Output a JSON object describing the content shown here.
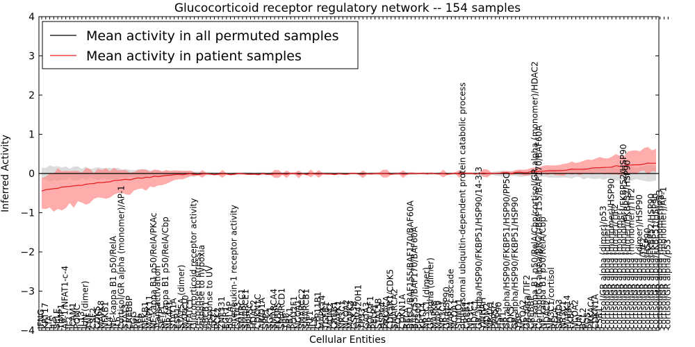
{
  "chart_data": {
    "type": "line",
    "title": "Glucocorticoid receptor regulatory network -- 154 samples",
    "xlabel": "Cellular Entities",
    "ylabel": "Inferred Activity",
    "ylim": [
      -4,
      4
    ],
    "yticks": [
      "4",
      "3",
      "2",
      "1",
      "0",
      "−1",
      "−2",
      "−3",
      "−4"
    ],
    "grid": false,
    "legend_position": "top-left",
    "n_points": 154,
    "colors": {
      "permuted": "#000000",
      "patient": "#e31a1c",
      "permuted_band": "#c0c0c0",
      "patient_band": "#ff8080"
    },
    "categories": [
      "IFNG",
      "KRT17",
      "LTA",
      "IL5",
      "SELE",
      "TIMP1",
      "AP-1/NFAT1-c-4",
      "IL2",
      "ICAM1",
      "POMC",
      "IL13",
      "JUN (dimer)",
      "TNF",
      "CSF2",
      "CDK5",
      "MAPK8",
      "NFKB1",
      "IL4",
      "NF-kappa B1 p50/RelA",
      "IL6",
      "Cortisol/GR alpha (monomer)/AP-1",
      "STAT3",
      "CREBBP",
      "FGG",
      "PRL",
      "AFP",
      "NFKB1",
      "MAPK11",
      "NF-kappa B1 p50/RelA/PKAc",
      "Transactivation",
      "SFTPC",
      "NF-kappa B1 p50/RelA/Cbp",
      "NR4A1",
      "STAT1A",
      "ESR1",
      "STAT5A (dimer)",
      "MAPK10",
      "NFATC1",
      "Glucocorticoid receptor activity",
      "response to stress",
      "response to hypoxia",
      "ABCB1",
      "response to UV",
      "AKT1",
      "PCK2",
      "ZNF331",
      "EGR1",
      "BGLAP",
      "Interleukin-1 receptor activity",
      "GATA3",
      "SMARCC1",
      "SMARCE1",
      "PPP5C",
      "HDAC2",
      "CDKN1C",
      "ARID1A",
      "SPP1",
      "SGK1",
      "SMARCA4",
      "FKBP5",
      "SMARCD1",
      "TBP",
      "PBX1",
      "POU2F1",
      "NCOA1",
      "SMARCC2",
      "SMARCB1",
      "IRF1",
      "IL8",
      "CYP11B1",
      "MAPK14",
      "TGFB1",
      "MDM2",
      "CREB1",
      "MAPK1",
      "NR3C1",
      "NCOA2",
      "MAPK3",
      "GSK3B",
      "SUV420H1",
      "TP53",
      "GATA3",
      "POU2F1",
      "PELP1",
      "STAT5B",
      "HSPA4",
      "PRKACA",
      "CDK5R1/CDK5",
      "SMARCA2",
      "FOS",
      "CDKN1A",
      "RELA",
      "BRG1/BAF155/BAF170/BAF60A",
      "BAF155/BAF170/BAF60A",
      "EP300",
      "KRT14",
      "NR3C1 (dimer)",
      "GR alpha (dimer)",
      "MAPK8",
      "MAPK9",
      "NR3C1",
      "GR/HSP90",
      "MAPK cascade",
      "NCOA1",
      "SUMO1",
      "proteasomal ubiquitin-dependent protein catabolic process",
      "CREB1",
      "NR3C1",
      "HDAC1",
      "GR alpha/HSP90/FKBP51/HSP90/14-3-3",
      "YWHAH",
      "MDM2",
      "NR4A1",
      "PPP5C",
      "HSP90",
      "GR1",
      "GR alpha/HSP90/FKBP51/HSP90/PP5C",
      "CDK5",
      "GR alpha/HSP90/FKBP51/HSP90",
      "TBP",
      "NCOA2",
      "GR beta/TIF2",
      "CREBBP",
      "NF-kappa B1 p50/RelA/Cbp/cortisol/GR alpha (monomer)/HDAC2",
      "Cortisol/GR alpha/BRG1/BAF155/BAF170/BAF60A",
      "NF-kappa B1 p50/RelA/Cbp",
      "HDAC2",
      "NR3C1/cortisol",
      "RELA",
      "SMAD3",
      "NR3C1",
      "MAPK14",
      "FKBP5",
      "NCOA2",
      "JUN",
      "BCL2",
      "FOS",
      "PRKACA",
      "CDKN1A",
      "ESR1",
      "cortisol/GR alpha (dimer)/p53",
      "cortisol/GR alpha (dimer)",
      "cortisol/GR alpha (monomer)/HSP90",
      "cortisol/GR alpha (dimer)/TIF2",
      "cortisol/GR alpha (monomer)",
      "cortisol/GR alpha (monomer)/FKBP52/HSP90",
      "cortisol/GR alpha (dimer)/FKBP52/HSP90",
      "cortisol/GR alpha (monomer)/TIF2",
      "cortisol/GR alpha",
      "cortisol/GR alpha (dimer)/HSP90",
      "cortisol/GR alpha/TIF2",
      "cortisol/GR alpha/HSP90",
      "cortisol/GR alpha/FKBP52/HSP90",
      "cortisol/GR alpha/FKBP51/HSP90",
      "cortisol/GR alpha (monomer)/p53",
      "cortisol/GR alpha (monomer)/AP-1",
      "cortisol/GR alpha/p53"
    ],
    "series": [
      {
        "name": "Mean activity in all permuted samples",
        "mean": [
          0,
          0
        ],
        "band_amplitude": 0.18
      },
      {
        "name": "Mean activity in patient samples",
        "mean_start": -0.44,
        "mean_flat_from": -0.02,
        "mean_end": 0.27,
        "band_lower_at_start": -0.92,
        "band_upper_at_start": 0.1,
        "band_upper_at_end": 0.62
      }
    ],
    "legend": [
      "Mean activity in all permuted samples",
      "Mean activity in patient samples"
    ]
  }
}
